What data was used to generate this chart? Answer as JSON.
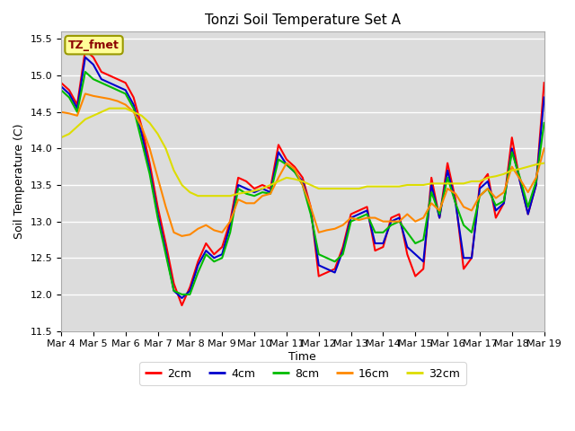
{
  "title": "Tonzi Soil Temperature Set A",
  "xlabel": "Time",
  "ylabel": "Soil Temperature (C)",
  "ylim": [
    11.5,
    15.6
  ],
  "xlim": [
    0,
    15
  ],
  "background_color": "#dcdcdc",
  "fig_background": "#ffffff",
  "annotation_text": "TZ_fmet",
  "annotation_box_color": "#ffff99",
  "annotation_box_edge": "#999900",
  "annotation_text_color": "#8b0000",
  "xtick_labels": [
    "Mar 4",
    "Mar 5",
    "Mar 6",
    "Mar 7",
    "Mar 8",
    "Mar 9",
    "Mar 10",
    "Mar 11",
    "Mar 12",
    "Mar 13",
    "Mar 14",
    "Mar 15",
    "Mar 16",
    "Mar 17",
    "Mar 18",
    "Mar 19"
  ],
  "legend_labels": [
    "2cm",
    "4cm",
    "8cm",
    "16cm",
    "32cm"
  ],
  "line_colors": [
    "#ff0000",
    "#0000cd",
    "#00bb00",
    "#ff8800",
    "#dddd00"
  ],
  "line_widths": [
    1.5,
    1.5,
    1.5,
    1.5,
    1.5
  ],
  "series_x": [
    0,
    0.25,
    0.5,
    0.75,
    1.0,
    1.25,
    1.5,
    1.75,
    2.0,
    2.25,
    2.5,
    2.75,
    3.0,
    3.25,
    3.5,
    3.75,
    4.0,
    4.25,
    4.5,
    4.75,
    5.0,
    5.25,
    5.5,
    5.75,
    6.0,
    6.25,
    6.5,
    6.75,
    7.0,
    7.25,
    7.5,
    7.75,
    8.0,
    8.25,
    8.5,
    8.75,
    9.0,
    9.25,
    9.5,
    9.75,
    10.0,
    10.25,
    10.5,
    10.75,
    11.0,
    11.25,
    11.5,
    11.75,
    12.0,
    12.25,
    12.5,
    12.75,
    13.0,
    13.25,
    13.5,
    13.75,
    14.0,
    14.25,
    14.5,
    14.75,
    15.0
  ],
  "series": {
    "2cm": [
      14.9,
      14.8,
      14.6,
      15.35,
      15.25,
      15.05,
      15.0,
      14.95,
      14.9,
      14.7,
      14.3,
      13.8,
      13.2,
      12.7,
      12.15,
      11.85,
      12.1,
      12.45,
      12.7,
      12.55,
      12.65,
      13.0,
      13.6,
      13.55,
      13.45,
      13.5,
      13.45,
      14.05,
      13.85,
      13.75,
      13.6,
      13.2,
      12.25,
      12.3,
      12.35,
      12.65,
      13.1,
      13.15,
      13.2,
      12.6,
      12.65,
      13.05,
      13.1,
      12.55,
      12.25,
      12.35,
      13.6,
      13.05,
      13.8,
      13.3,
      12.35,
      12.5,
      13.5,
      13.65,
      13.05,
      13.25,
      14.15,
      13.55,
      13.1,
      13.5,
      14.9
    ],
    "4cm": [
      14.85,
      14.75,
      14.55,
      15.25,
      15.15,
      14.95,
      14.9,
      14.85,
      14.8,
      14.6,
      14.2,
      13.7,
      13.1,
      12.6,
      12.05,
      11.95,
      12.05,
      12.4,
      12.6,
      12.5,
      12.55,
      12.95,
      13.5,
      13.45,
      13.4,
      13.45,
      13.4,
      13.95,
      13.78,
      13.68,
      13.55,
      13.15,
      12.4,
      12.35,
      12.3,
      12.6,
      13.05,
      13.1,
      13.15,
      12.7,
      12.7,
      13.0,
      13.05,
      12.65,
      12.55,
      12.45,
      13.5,
      13.05,
      13.7,
      13.25,
      12.5,
      12.5,
      13.45,
      13.55,
      13.15,
      13.25,
      14.0,
      13.55,
      13.1,
      13.5,
      14.7
    ],
    "8cm": [
      14.8,
      14.7,
      14.5,
      15.05,
      14.95,
      14.9,
      14.85,
      14.8,
      14.75,
      14.55,
      14.1,
      13.65,
      13.05,
      12.55,
      12.05,
      12.0,
      12.0,
      12.3,
      12.55,
      12.45,
      12.5,
      12.85,
      13.45,
      13.38,
      13.35,
      13.4,
      13.38,
      13.85,
      13.78,
      13.68,
      13.5,
      13.1,
      12.55,
      12.5,
      12.45,
      12.55,
      13.0,
      13.05,
      13.1,
      12.85,
      12.85,
      12.95,
      13.0,
      12.85,
      12.7,
      12.75,
      13.4,
      13.1,
      13.6,
      13.25,
      12.95,
      12.85,
      13.35,
      13.45,
      13.22,
      13.28,
      13.95,
      13.6,
      13.2,
      13.55,
      14.35
    ],
    "16cm": [
      14.5,
      14.48,
      14.45,
      14.75,
      14.72,
      14.7,
      14.68,
      14.65,
      14.6,
      14.5,
      14.3,
      14.0,
      13.6,
      13.2,
      12.85,
      12.8,
      12.82,
      12.9,
      12.95,
      12.88,
      12.85,
      13.0,
      13.3,
      13.25,
      13.25,
      13.35,
      13.38,
      13.6,
      13.8,
      13.72,
      13.5,
      13.2,
      12.85,
      12.88,
      12.9,
      12.95,
      13.05,
      13.02,
      13.05,
      13.05,
      13.0,
      13.0,
      13.0,
      13.1,
      13.0,
      13.05,
      13.25,
      13.15,
      13.45,
      13.38,
      13.2,
      13.15,
      13.35,
      13.45,
      13.32,
      13.4,
      13.75,
      13.58,
      13.4,
      13.6,
      14.0
    ],
    "32cm": [
      14.15,
      14.2,
      14.3,
      14.4,
      14.45,
      14.5,
      14.55,
      14.55,
      14.55,
      14.5,
      14.45,
      14.35,
      14.2,
      14.0,
      13.7,
      13.5,
      13.4,
      13.35,
      13.35,
      13.35,
      13.35,
      13.35,
      13.38,
      13.4,
      13.42,
      13.45,
      13.5,
      13.55,
      13.6,
      13.58,
      13.55,
      13.5,
      13.45,
      13.45,
      13.45,
      13.45,
      13.45,
      13.45,
      13.48,
      13.48,
      13.48,
      13.48,
      13.48,
      13.5,
      13.5,
      13.5,
      13.52,
      13.52,
      13.52,
      13.52,
      13.52,
      13.55,
      13.55,
      13.6,
      13.62,
      13.65,
      13.7,
      13.72,
      13.75,
      13.78,
      13.8
    ]
  }
}
